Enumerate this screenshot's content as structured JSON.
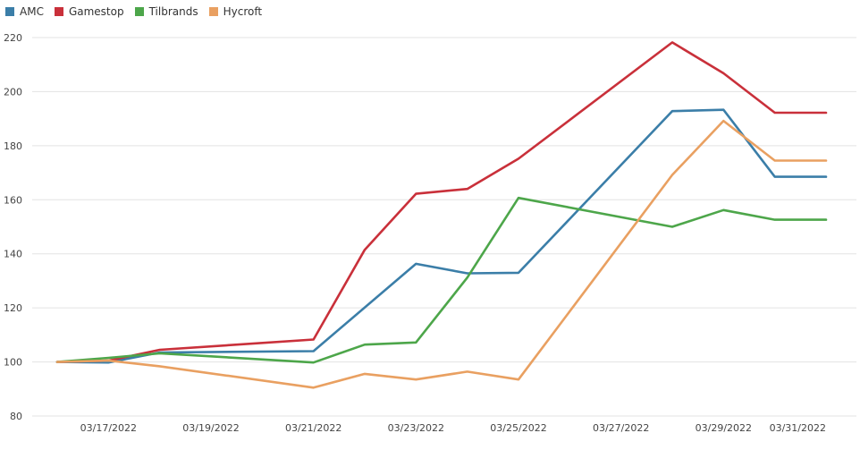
{
  "colors": {
    "amc": "#3b7ea8",
    "gamestop": "#c9303a",
    "tilbrands": "#4da64a",
    "hycroft": "#e9a061",
    "grid": "#e3e3e3",
    "text": "#444444"
  },
  "legend": {
    "items": [
      {
        "label": "AMC",
        "color": "#3b7ea8"
      },
      {
        "label": "Gamestop",
        "color": "#c9303a"
      },
      {
        "label": "Tilbrands",
        "color": "#4da64a"
      },
      {
        "label": "Hycroft",
        "color": "#e9a061"
      }
    ]
  },
  "chart_data": {
    "type": "line",
    "title": "",
    "xlabel": "",
    "ylabel": "",
    "ylim": [
      80,
      220
    ],
    "yticks": [
      80,
      100,
      120,
      140,
      160,
      180,
      200,
      220
    ],
    "grid": true,
    "legend_position": "top-left",
    "x": [
      "03/16/2022",
      "03/17/2022",
      "03/18/2022",
      "03/19/2022",
      "03/20/2022",
      "03/21/2022",
      "03/22/2022",
      "03/23/2022",
      "03/24/2022",
      "03/25/2022",
      "03/26/2022",
      "03/27/2022",
      "03/28/2022",
      "03/29/2022",
      "03/30/2022",
      "03/31/2022"
    ],
    "xtick_labels": [
      "03/17/2022",
      "03/19/2022",
      "03/21/2022",
      "03/23/2022",
      "03/25/2022",
      "03/27/2022",
      "03/29/2022",
      "03/31/2022"
    ],
    "series": [
      {
        "name": "AMC",
        "color": "#3b7ea8",
        "points": [
          [
            "03/16/2022",
            100
          ],
          [
            "03/17/2022",
            99.8
          ],
          [
            "03/18/2022",
            103.5
          ],
          [
            "03/21/2022",
            104
          ],
          [
            "03/23/2022",
            136.3
          ],
          [
            "03/24/2022",
            132.8
          ],
          [
            "03/25/2022",
            133
          ],
          [
            "03/28/2022",
            192.8
          ],
          [
            "03/29/2022",
            193.3
          ],
          [
            "03/30/2022",
            168.5
          ],
          [
            "03/31/2022",
            168.5
          ]
        ]
      },
      {
        "name": "Gamestop",
        "color": "#c9303a",
        "points": [
          [
            "03/16/2022",
            100
          ],
          [
            "03/17/2022",
            100.5
          ],
          [
            "03/18/2022",
            104.5
          ],
          [
            "03/21/2022",
            108.3
          ],
          [
            "03/22/2022",
            141.5
          ],
          [
            "03/23/2022",
            162.2
          ],
          [
            "03/24/2022",
            164
          ],
          [
            "03/25/2022",
            175.2
          ],
          [
            "03/28/2022",
            218.2
          ],
          [
            "03/29/2022",
            206.8
          ],
          [
            "03/30/2022",
            192.2
          ],
          [
            "03/31/2022",
            192.2
          ]
        ]
      },
      {
        "name": "Tilbrands",
        "color": "#4da64a",
        "points": [
          [
            "03/16/2022",
            100
          ],
          [
            "03/17/2022",
            101.5
          ],
          [
            "03/18/2022",
            103.2
          ],
          [
            "03/21/2022",
            99.8
          ],
          [
            "03/22/2022",
            106.4
          ],
          [
            "03/23/2022",
            107.2
          ],
          [
            "03/24/2022",
            131.2
          ],
          [
            "03/25/2022",
            160.7
          ],
          [
            "03/28/2022",
            150
          ],
          [
            "03/29/2022",
            156.2
          ],
          [
            "03/30/2022",
            152.6
          ],
          [
            "03/31/2022",
            152.6
          ]
        ]
      },
      {
        "name": "Hycroft",
        "color": "#e9a061",
        "points": [
          [
            "03/16/2022",
            100
          ],
          [
            "03/17/2022",
            100.5
          ],
          [
            "03/18/2022",
            98.4
          ],
          [
            "03/21/2022",
            90.5
          ],
          [
            "03/22/2022",
            95.6
          ],
          [
            "03/23/2022",
            93.5
          ],
          [
            "03/24/2022",
            96.4
          ],
          [
            "03/25/2022",
            93.5
          ],
          [
            "03/28/2022",
            169.2
          ],
          [
            "03/29/2022",
            189.2
          ],
          [
            "03/30/2022",
            174.5
          ],
          [
            "03/31/2022",
            174.5
          ]
        ]
      }
    ]
  }
}
